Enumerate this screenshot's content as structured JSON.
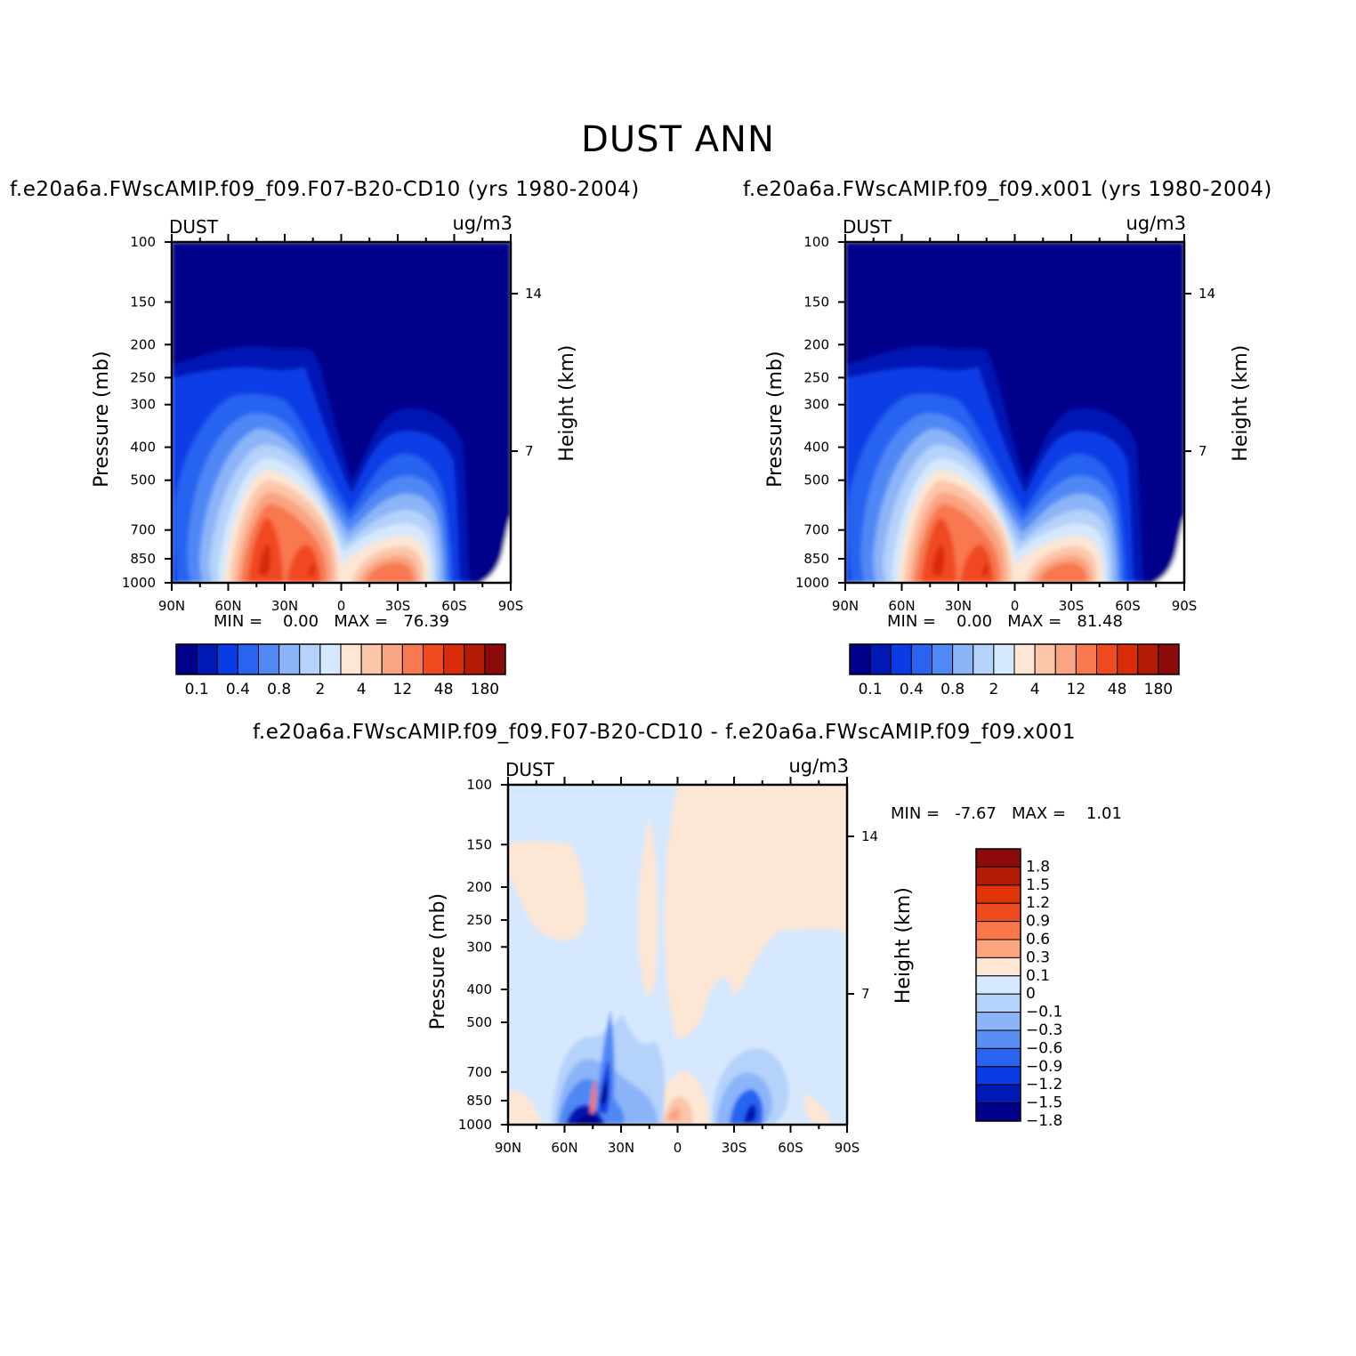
{
  "title": "DUST ANN",
  "panels": [
    {
      "case_title": "f.e20a6a.FWscAMIP.f09_f09.F07-B20-CD10 (yrs 1980-2004)",
      "var_label": "DUST",
      "units": "ug/m3",
      "stats_text": "MIN =    0.00   MAX =   76.39",
      "ylabel": "Pressure (mb)",
      "ylabel_right": "Height (km)"
    },
    {
      "case_title": "f.e20a6a.FWscAMIP.f09_f09.x001 (yrs 1980-2004)",
      "var_label": "DUST",
      "units": "ug/m3",
      "stats_text": "MIN =    0.00   MAX =   81.48",
      "ylabel": "Pressure (mb)",
      "ylabel_right": "Height (km)"
    },
    {
      "case_title": "f.e20a6a.FWscAMIP.f09_f09.F07-B20-CD10 - f.e20a6a.FWscAMIP.f09_f09.x001",
      "var_label": "DUST",
      "units": "ug/m3",
      "stats_text": "MIN =   -7.67   MAX =    1.01",
      "ylabel": "Pressure (mb)",
      "ylabel_right": "Height (km)"
    }
  ],
  "axes": {
    "x_ticks": [
      "90N",
      "60N",
      "30N",
      "0",
      "30S",
      "60S",
      "90S"
    ],
    "y_ticks": [
      "100",
      "150",
      "200",
      "250",
      "300",
      "400",
      "500",
      "700",
      "850",
      "1000"
    ],
    "y_right_ticks": [
      "14",
      "7"
    ]
  },
  "colorbar_main": {
    "colors": [
      "#00008b",
      "#0019b4",
      "#0a3ce6",
      "#2864f0",
      "#5088f5",
      "#8cb4f8",
      "#b4d2fa",
      "#d6e8fd",
      "#fde6d4",
      "#fbc6aa",
      "#f9a482",
      "#f87850",
      "#f04a20",
      "#d82c0a",
      "#b41a06",
      "#8b0a0a"
    ],
    "labels": [
      "0.1",
      "0.4",
      "0.8",
      "2",
      "4",
      "12",
      "48",
      "180"
    ]
  },
  "colorbar_diff": {
    "colors": [
      "#8b0a0a",
      "#b41a06",
      "#e03408",
      "#f04a20",
      "#f8784a",
      "#fca47e",
      "#fde6d4",
      "#d6e8fd",
      "#b4d2fa",
      "#8cb4f8",
      "#5a8ef2",
      "#2864f0",
      "#0a3ce6",
      "#0019b4",
      "#00008b"
    ],
    "labels": [
      "1.8",
      "1.5",
      "1.2",
      "0.9",
      "0.6",
      "0.3",
      "0.1",
      "0",
      "-0.1",
      "-0.3",
      "-0.6",
      "-0.9",
      "-1.2",
      "-1.5",
      "-1.8"
    ]
  },
  "chart_data": [
    {
      "type": "heatmap",
      "title": "f.e20a6a.FWscAMIP.f09_f09.F07-B20-CD10 (yrs 1980-2004)",
      "variable": "DUST",
      "units": "ug/m3",
      "xlabel": "",
      "ylabel": "Pressure (mb)",
      "ylabel_right": "Height (km)",
      "x_ticks": [
        "90N",
        "60N",
        "30N",
        "0",
        "30S",
        "60S",
        "90S"
      ],
      "xlim": [
        90,
        -90
      ],
      "y_ticks": [
        100,
        150,
        200,
        250,
        300,
        400,
        500,
        700,
        850,
        1000
      ],
      "ylim": [
        1000,
        100
      ],
      "y_scale": "log",
      "contour_levels": [
        0.1,
        0.4,
        0.8,
        2,
        4,
        12,
        48,
        180
      ],
      "min": 0.0,
      "max": 76.39,
      "features": [
        {
          "lat": 42,
          "pressure": 850,
          "value": 70
        },
        {
          "lat": 15,
          "pressure": 850,
          "value": 40
        },
        {
          "lat": -22,
          "pressure": 850,
          "value": 12
        },
        {
          "lat": -40,
          "pressure": 850,
          "value": 14
        }
      ]
    },
    {
      "type": "heatmap",
      "title": "f.e20a6a.FWscAMIP.f09_f09.x001 (yrs 1980-2004)",
      "variable": "DUST",
      "units": "ug/m3",
      "xlabel": "",
      "ylabel": "Pressure (mb)",
      "ylabel_right": "Height (km)",
      "x_ticks": [
        "90N",
        "60N",
        "30N",
        "0",
        "30S",
        "60S",
        "90S"
      ],
      "xlim": [
        90,
        -90
      ],
      "y_ticks": [
        100,
        150,
        200,
        250,
        300,
        400,
        500,
        700,
        850,
        1000
      ],
      "ylim": [
        1000,
        100
      ],
      "y_scale": "log",
      "contour_levels": [
        0.1,
        0.4,
        0.8,
        2,
        4,
        12,
        48,
        180
      ],
      "min": 0.0,
      "max": 81.48,
      "features": [
        {
          "lat": 42,
          "pressure": 850,
          "value": 75
        },
        {
          "lat": 15,
          "pressure": 850,
          "value": 42
        },
        {
          "lat": -22,
          "pressure": 850,
          "value": 12
        },
        {
          "lat": -40,
          "pressure": 850,
          "value": 15
        }
      ]
    },
    {
      "type": "heatmap",
      "title": "f.e20a6a.FWscAMIP.f09_f09.F07-B20-CD10 - f.e20a6a.FWscAMIP.f09_f09.x001",
      "variable": "DUST",
      "units": "ug/m3",
      "xlabel": "",
      "ylabel": "Pressure (mb)",
      "ylabel_right": "Height (km)",
      "x_ticks": [
        "90N",
        "60N",
        "30N",
        "0",
        "30S",
        "60S",
        "90S"
      ],
      "xlim": [
        90,
        -90
      ],
      "y_ticks": [
        100,
        150,
        200,
        250,
        300,
        400,
        500,
        700,
        850,
        1000
      ],
      "ylim": [
        1000,
        100
      ],
      "y_scale": "log",
      "contour_levels": [
        -1.8,
        -1.5,
        -1.2,
        -0.9,
        -0.6,
        -0.3,
        -0.1,
        0,
        0.1,
        0.3,
        0.6,
        0.9,
        1.2,
        1.5,
        1.8
      ],
      "min": -7.67,
      "max": 1.01,
      "features": [
        {
          "lat": 48,
          "pressure": 1000,
          "value": -7.67
        },
        {
          "lat": 40,
          "pressure": 800,
          "value": -1.8
        },
        {
          "lat": 43,
          "pressure": 800,
          "value": 0.9
        },
        {
          "lat": 8,
          "pressure": 900,
          "value": 0.6
        },
        {
          "lat": -38,
          "pressure": 900,
          "value": -1.2
        }
      ]
    }
  ]
}
